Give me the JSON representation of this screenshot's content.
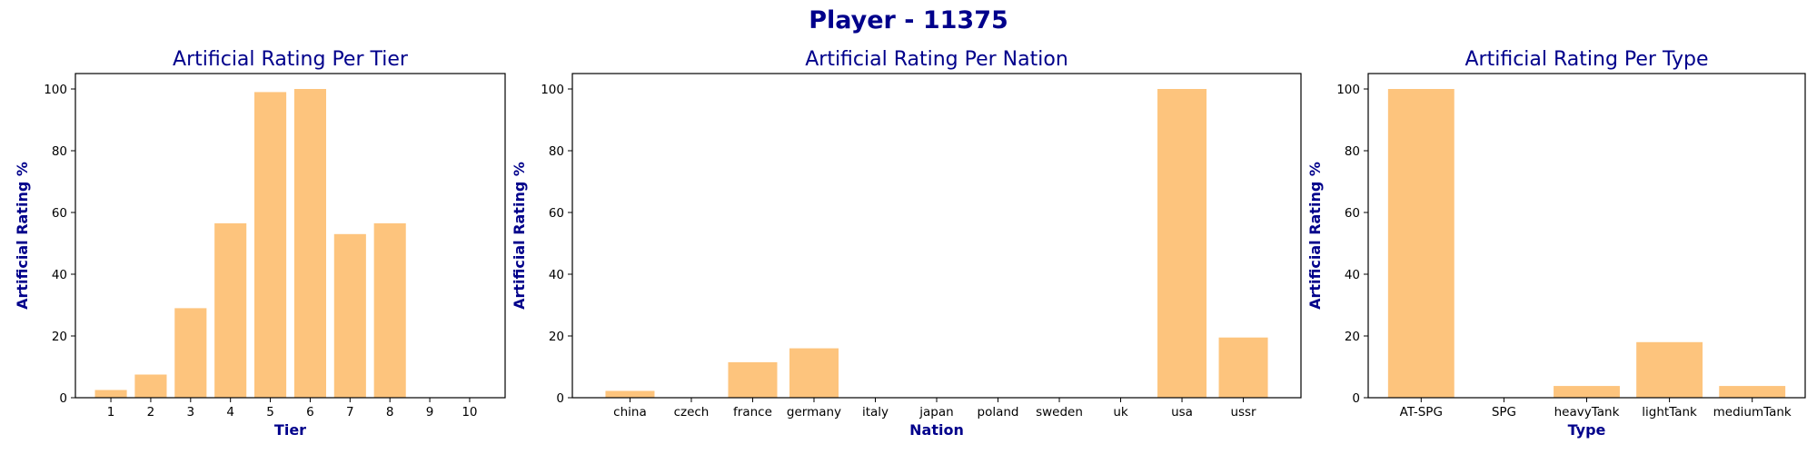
{
  "figure_title": "Player - 11375",
  "bar_color": "#fdc47d",
  "title_color": "#00008b",
  "chart_data": [
    {
      "type": "bar",
      "title": "Artificial Rating Per Tier",
      "xlabel": "Tier",
      "ylabel": "Artificial Rating %",
      "categories": [
        "1",
        "2",
        "3",
        "4",
        "5",
        "6",
        "7",
        "8",
        "9",
        "10"
      ],
      "values": [
        2.5,
        7.5,
        29,
        56.5,
        99,
        100,
        53,
        56.5,
        0,
        0
      ],
      "ylim": [
        0,
        105
      ],
      "yticks": [
        0,
        20,
        40,
        60,
        80,
        100
      ]
    },
    {
      "type": "bar",
      "title": "Artificial Rating Per Nation",
      "xlabel": "Nation",
      "ylabel": "Artificial Rating %",
      "categories": [
        "china",
        "czech",
        "france",
        "germany",
        "italy",
        "japan",
        "poland",
        "sweden",
        "uk",
        "usa",
        "ussr"
      ],
      "values": [
        2.2,
        0,
        11.5,
        16,
        0,
        0,
        0,
        0,
        0,
        100,
        19.5
      ],
      "ylim": [
        0,
        105
      ],
      "yticks": [
        0,
        20,
        40,
        60,
        80,
        100
      ]
    },
    {
      "type": "bar",
      "title": "Artificial Rating Per Type",
      "xlabel": "Type",
      "ylabel": "Artificial Rating %",
      "categories": [
        "AT-SPG",
        "SPG",
        "heavyTank",
        "lightTank",
        "mediumTank"
      ],
      "values": [
        100,
        0,
        3.8,
        18,
        3.8
      ],
      "ylim": [
        0,
        105
      ],
      "yticks": [
        0,
        20,
        40,
        60,
        80,
        100
      ]
    }
  ]
}
